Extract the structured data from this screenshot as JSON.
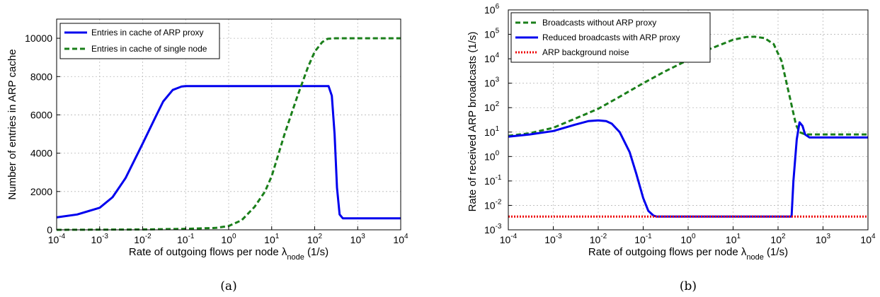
{
  "chart_data": [
    {
      "type": "line",
      "caption": "(a)",
      "xlabel": "Rate of outgoing flows per node λnode (1/s)",
      "xlabel_main": "Rate of outgoing flows per node λ",
      "xlabel_sub": "node",
      "xlabel_unit": " (1/s)",
      "ylabel": "Number of entries in ARP cache",
      "x_scale": "log",
      "y_scale": "linear",
      "xlim": [
        0.0001,
        10000
      ],
      "ylim": [
        0,
        11000
      ],
      "grid": true,
      "legend_position": "top-left",
      "x_ticks": [
        {
          "base": "10",
          "exp": "-4"
        },
        {
          "base": "10",
          "exp": "-3"
        },
        {
          "base": "10",
          "exp": "-2"
        },
        {
          "base": "10",
          "exp": "-1"
        },
        {
          "base": "10",
          "exp": "0"
        },
        {
          "base": "10",
          "exp": "1"
        },
        {
          "base": "10",
          "exp": "2"
        },
        {
          "base": "10",
          "exp": "3"
        },
        {
          "base": "10",
          "exp": "4"
        }
      ],
      "y_ticks": [
        "0",
        "2000",
        "4000",
        "6000",
        "8000",
        "10000"
      ],
      "series": [
        {
          "name": "Entries in cache of ARP proxy",
          "color": "#0000ee",
          "style": "solid",
          "x": [
            0.0001,
            0.0003,
            0.001,
            0.002,
            0.004,
            0.007,
            0.01,
            0.02,
            0.03,
            0.05,
            0.08,
            0.1,
            1,
            10,
            100,
            180,
            210,
            250,
            290,
            330,
            380,
            450,
            600,
            1000,
            10000
          ],
          "y": [
            650,
            800,
            1150,
            1700,
            2700,
            3800,
            4500,
            5900,
            6700,
            7300,
            7480,
            7500,
            7500,
            7500,
            7500,
            7500,
            7500,
            7000,
            5000,
            2200,
            800,
            600,
            600,
            600,
            600
          ]
        },
        {
          "name": "Entries in cache of single node",
          "color": "#1a7f1a",
          "style": "dashed",
          "x": [
            0.0001,
            0.01,
            0.1,
            0.5,
            1,
            2,
            4,
            7,
            10,
            20,
            40,
            70,
            100,
            150,
            200,
            300,
            1000,
            10000
          ],
          "y": [
            0,
            20,
            50,
            100,
            200,
            500,
            1200,
            2000,
            2800,
            5000,
            7000,
            8500,
            9300,
            9800,
            9970,
            10000,
            10000,
            10000
          ]
        }
      ]
    },
    {
      "type": "line",
      "caption": "(b)",
      "xlabel": "Rate of outgoing flows per node λnode (1/s)",
      "xlabel_main": "Rate of outgoing flows per node λ",
      "xlabel_sub": "node",
      "xlabel_unit": " (1/s)",
      "ylabel": "Rate of received ARP broadcasts (1/s)",
      "x_scale": "log",
      "y_scale": "log",
      "xlim": [
        0.0001,
        10000
      ],
      "ylim": [
        0.001,
        1000000
      ],
      "grid": true,
      "legend_position": "top-left",
      "x_ticks": [
        {
          "base": "10",
          "exp": "-4"
        },
        {
          "base": "10",
          "exp": "-3"
        },
        {
          "base": "10",
          "exp": "-2"
        },
        {
          "base": "10",
          "exp": "-1"
        },
        {
          "base": "10",
          "exp": "0"
        },
        {
          "base": "10",
          "exp": "1"
        },
        {
          "base": "10",
          "exp": "2"
        },
        {
          "base": "10",
          "exp": "3"
        },
        {
          "base": "10",
          "exp": "4"
        }
      ],
      "y_ticks": [
        {
          "base": "10",
          "exp": "-3"
        },
        {
          "base": "10",
          "exp": "-2"
        },
        {
          "base": "10",
          "exp": "-1"
        },
        {
          "base": "10",
          "exp": "0"
        },
        {
          "base": "10",
          "exp": "1"
        },
        {
          "base": "10",
          "exp": "2"
        },
        {
          "base": "10",
          "exp": "3"
        },
        {
          "base": "10",
          "exp": "4"
        },
        {
          "base": "10",
          "exp": "5"
        },
        {
          "base": "10",
          "exp": "6"
        }
      ],
      "series": [
        {
          "name": "Broadcasts without ARP proxy",
          "color": "#1a7f1a",
          "style": "dashed",
          "x": [
            0.0001,
            0.0003,
            0.001,
            0.003,
            0.01,
            0.03,
            0.1,
            0.3,
            1,
            3,
            10,
            20,
            30,
            50,
            80,
            120,
            180,
            250,
            300,
            400,
            600,
            1000,
            10000
          ],
          "y": [
            7,
            9,
            15,
            35,
            90,
            280,
            1000,
            3000,
            9000,
            25000,
            60000,
            78000,
            80000,
            70000,
            40000,
            8000,
            300,
            20,
            10,
            8,
            8,
            8,
            8
          ]
        },
        {
          "name": "Reduced broadcasts with ARP proxy",
          "color": "#0000ee",
          "style": "solid",
          "x": [
            0.0001,
            0.0003,
            0.001,
            0.003,
            0.006,
            0.01,
            0.015,
            0.02,
            0.03,
            0.05,
            0.07,
            0.1,
            0.13,
            0.17,
            0.2,
            1,
            10,
            100,
            200,
            220,
            260,
            300,
            350,
            400,
            500,
            1000,
            10000
          ],
          "y": [
            6.5,
            8,
            11,
            20,
            28,
            30,
            28,
            22,
            10,
            1.5,
            0.2,
            0.02,
            0.006,
            0.0038,
            0.0035,
            0.0035,
            0.0035,
            0.0035,
            0.0035,
            0.1,
            5,
            25,
            18,
            8,
            6,
            6,
            6
          ]
        },
        {
          "name": "ARP background noise",
          "color": "#ee0000",
          "style": "dotted",
          "x": [
            0.0001,
            10000
          ],
          "y": [
            0.0035,
            0.0035
          ]
        }
      ]
    }
  ]
}
